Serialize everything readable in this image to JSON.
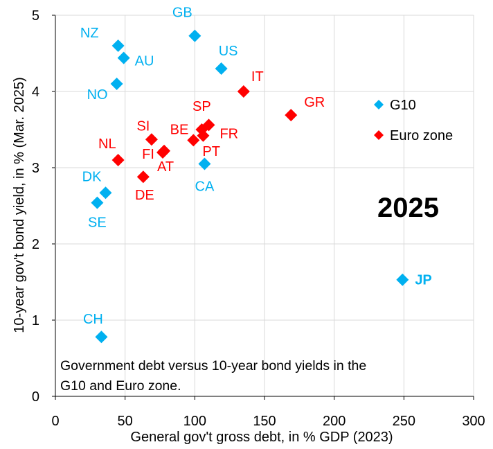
{
  "chart_data": {
    "type": "scatter",
    "xlabel": "General gov't gross debt, in % GDP (2023)",
    "ylabel": "10-year gov't bond yield, in % (Mar. 2025)",
    "xlim": [
      0,
      300
    ],
    "ylim": [
      0,
      5
    ],
    "xticks": [
      0,
      50,
      100,
      150,
      200,
      250,
      300
    ],
    "yticks": [
      0,
      1,
      2,
      3,
      4,
      5
    ],
    "grid": true,
    "annotation_year": "2025",
    "note": "Government debt versus 10-year bond yields in the G10 and Euro zone.",
    "note_lines": [
      "Government debt versus 10-year bond yields in the",
      "G10 and Euro zone."
    ],
    "series": [
      {
        "name": "G10",
        "color": "#00B0F0",
        "marker": "diamond",
        "points": [
          {
            "label": "NZ",
            "x": 45,
            "y": 4.6
          },
          {
            "label": "AU",
            "x": 49,
            "y": 4.44
          },
          {
            "label": "GB",
            "x": 100,
            "y": 4.73
          },
          {
            "label": "US",
            "x": 119,
            "y": 4.3
          },
          {
            "label": "NO",
            "x": 44,
            "y": 4.1
          },
          {
            "label": "CA",
            "x": 107,
            "y": 3.05
          },
          {
            "label": "DK",
            "x": 36,
            "y": 2.67
          },
          {
            "label": "SE",
            "x": 30,
            "y": 2.54
          },
          {
            "label": "JP",
            "x": 249,
            "y": 1.53
          },
          {
            "label": "CH",
            "x": 33,
            "y": 0.78
          }
        ]
      },
      {
        "name": "Euro zone",
        "color": "#FF0000",
        "marker": "diamond",
        "points": [
          {
            "label": "IT",
            "x": 135,
            "y": 4.0
          },
          {
            "label": "GR",
            "x": 169,
            "y": 3.69
          },
          {
            "label": "SP",
            "x": 105,
            "y": 3.5
          },
          {
            "label": "FR",
            "x": 110,
            "y": 3.56
          },
          {
            "label": "BE",
            "x": 99,
            "y": 3.36
          },
          {
            "label": "PT",
            "x": 106,
            "y": 3.42
          },
          {
            "label": "SI",
            "x": 69,
            "y": 3.37
          },
          {
            "label": "NL",
            "x": 45,
            "y": 3.1
          },
          {
            "label": "FI",
            "x": 77,
            "y": 3.2
          },
          {
            "label": "AT",
            "x": 78,
            "y": 3.22
          },
          {
            "label": "DE",
            "x": 63,
            "y": 2.88
          }
        ]
      }
    ]
  }
}
